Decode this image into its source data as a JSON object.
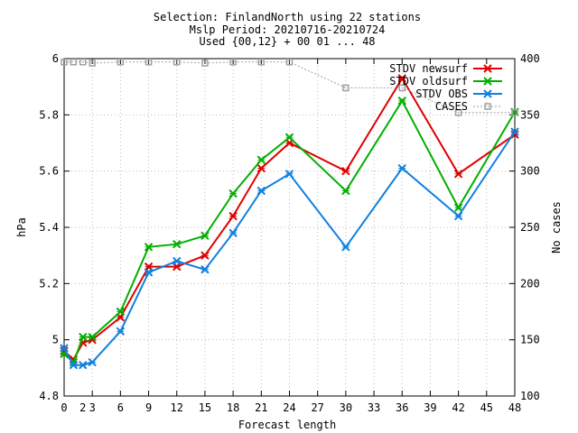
{
  "title_lines": [
    "Selection: FinlandNorth using    22 stations",
    "Mslp   Period: 20210716-20210724",
    "Used {00,12} + 00 01 ... 48"
  ],
  "chart_data": {
    "type": "line",
    "xlabel": "Forecast length",
    "ylabel": "hPa",
    "y2label": "No cases",
    "xlim": [
      0,
      48
    ],
    "ylim": [
      4.8,
      6.0
    ],
    "y2lim": [
      100,
      400
    ],
    "x_ticks": [
      0,
      3,
      6,
      9,
      12,
      15,
      18,
      21,
      24,
      27,
      30,
      33,
      36,
      39,
      42,
      45,
      48
    ],
    "x_tick_labels": [
      "0",
      "3",
      "6",
      "9",
      "12",
      "15",
      "18",
      "21",
      "24",
      "27",
      "30",
      "33",
      "36",
      "39",
      "42",
      "45",
      "48"
    ],
    "extra_x_tick_label": "2",
    "y_ticks": [
      4.8,
      5.0,
      5.2,
      5.4,
      5.6,
      5.8,
      6.0
    ],
    "y_tick_labels": [
      "4.8",
      "5",
      "5.2",
      "5.4",
      "5.6",
      "5.8",
      "6"
    ],
    "y2_ticks": [
      100,
      150,
      200,
      250,
      300,
      350,
      400
    ],
    "y2_tick_labels": [
      "100",
      "150",
      "200",
      "250",
      "300",
      "350",
      "400"
    ],
    "legend_position": "top-right",
    "grid": true,
    "series": [
      {
        "name": "STDV newsurf",
        "axis": "y1",
        "color": "#e00000",
        "marker": "x",
        "x": [
          0,
          1,
          2,
          3,
          6,
          9,
          12,
          15,
          18,
          21,
          24,
          30,
          36,
          42,
          48
        ],
        "values": [
          4.96,
          4.93,
          4.99,
          5.0,
          5.08,
          5.26,
          5.26,
          5.3,
          5.44,
          5.61,
          5.7,
          5.6,
          5.93,
          5.59,
          5.73
        ]
      },
      {
        "name": "STDV oldsurf",
        "axis": "y1",
        "color": "#00b000",
        "marker": "x",
        "x": [
          0,
          1,
          2,
          3,
          6,
          9,
          12,
          15,
          18,
          21,
          24,
          30,
          36,
          42,
          48
        ],
        "values": [
          4.95,
          4.92,
          5.01,
          5.01,
          5.1,
          5.33,
          5.34,
          5.37,
          5.52,
          5.64,
          5.72,
          5.53,
          5.85,
          5.47,
          5.81
        ]
      },
      {
        "name": "STDV OBS",
        "axis": "y1",
        "color": "#1080e0",
        "marker": "x",
        "x": [
          0,
          1,
          2,
          3,
          6,
          9,
          12,
          15,
          18,
          21,
          24,
          30,
          36,
          42,
          48
        ],
        "values": [
          4.97,
          4.91,
          4.91,
          4.92,
          5.03,
          5.24,
          5.28,
          5.25,
          5.38,
          5.53,
          5.59,
          5.33,
          5.61,
          5.44,
          5.74
        ]
      },
      {
        "name": "CASES",
        "axis": "y2",
        "color": "#a0a0a0",
        "marker": "square",
        "dashed": true,
        "x": [
          0,
          1,
          2,
          3,
          6,
          9,
          12,
          15,
          18,
          21,
          24,
          30,
          36,
          42,
          48
        ],
        "values": [
          397,
          397,
          397,
          396,
          397,
          397,
          397,
          396,
          397,
          397,
          397,
          374,
          374,
          352,
          352
        ]
      }
    ]
  }
}
